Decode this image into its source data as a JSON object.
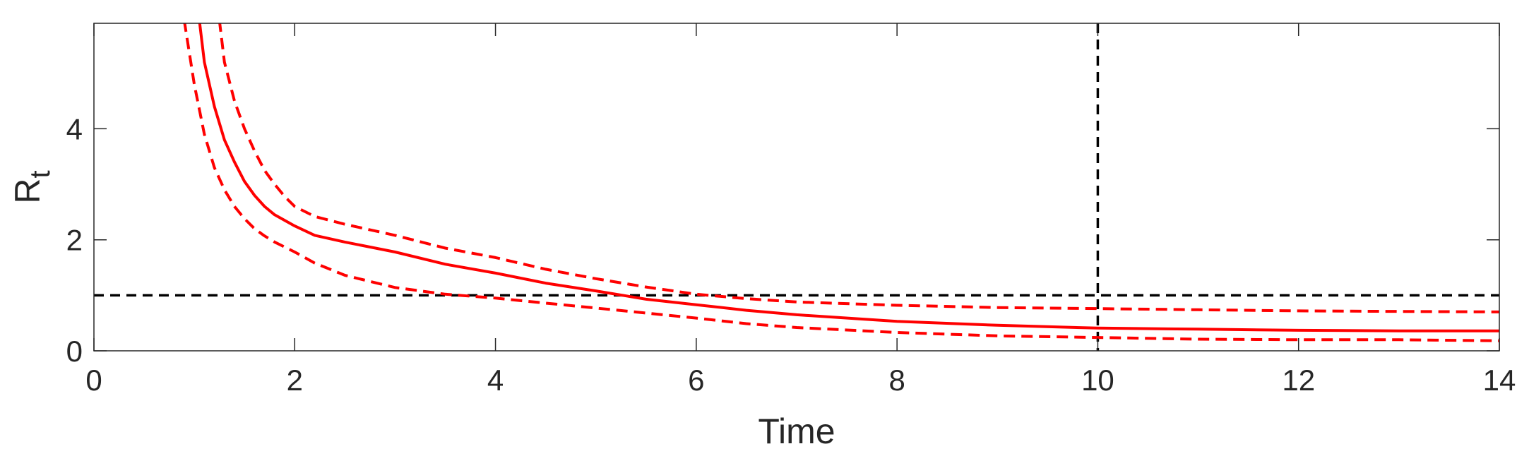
{
  "chart_data": {
    "type": "line",
    "title": "",
    "xlabel": "Time",
    "ylabel": "R",
    "ylabel_subscript": "t",
    "xlim": [
      0,
      14
    ],
    "ylim": [
      0,
      5.9
    ],
    "xticks": [
      "0",
      "2",
      "4",
      "6",
      "8",
      "10",
      "12",
      "14"
    ],
    "yticks": [
      "0",
      "2",
      "4"
    ],
    "grid": false,
    "legend": "none",
    "colors": {
      "series": "#ff0000",
      "reference": "#000000",
      "axis": "#262626"
    },
    "reference_lines": [
      {
        "orientation": "horizontal",
        "y": 1,
        "style": "dashed"
      },
      {
        "orientation": "vertical",
        "x": 10,
        "style": "dashed"
      }
    ],
    "series": [
      {
        "style": "solid",
        "x": [
          1.05,
          1.1,
          1.2,
          1.3,
          1.4,
          1.5,
          1.6,
          1.7,
          1.8,
          2,
          2.2,
          2.5,
          3,
          3.5,
          4,
          4.5,
          5,
          5.5,
          6,
          6.5,
          7,
          8,
          9,
          10,
          11,
          12,
          13,
          14
        ],
        "values": [
          5.95,
          5.2,
          4.4,
          3.8,
          3.4,
          3.05,
          2.8,
          2.6,
          2.45,
          2.25,
          2.08,
          1.96,
          1.78,
          1.56,
          1.4,
          1.22,
          1.08,
          0.93,
          0.83,
          0.73,
          0.65,
          0.53,
          0.46,
          0.41,
          0.39,
          0.37,
          0.36,
          0.36
        ]
      },
      {
        "style": "dashed",
        "x": [
          1.25,
          1.3,
          1.4,
          1.5,
          1.6,
          1.7,
          1.8,
          1.9,
          2,
          2.2,
          2.5,
          3,
          3.5,
          4,
          4.5,
          5,
          5.5,
          6,
          6.5,
          7,
          8,
          9,
          10,
          11,
          12,
          13,
          14
        ],
        "values": [
          5.95,
          5.2,
          4.5,
          4.0,
          3.6,
          3.25,
          3.0,
          2.78,
          2.6,
          2.42,
          2.28,
          2.08,
          1.85,
          1.68,
          1.47,
          1.3,
          1.15,
          1.02,
          0.94,
          0.88,
          0.82,
          0.78,
          0.76,
          0.74,
          0.72,
          0.71,
          0.7
        ]
      },
      {
        "style": "dashed",
        "x": [
          0.9,
          1.0,
          1.1,
          1.2,
          1.3,
          1.4,
          1.5,
          1.6,
          1.7,
          1.8,
          2,
          2.2,
          2.5,
          3,
          3.5,
          4,
          4.5,
          5,
          5.5,
          6,
          6.5,
          7,
          8,
          9,
          10,
          11,
          12,
          13,
          14
        ],
        "values": [
          5.95,
          4.8,
          3.9,
          3.3,
          2.9,
          2.6,
          2.38,
          2.2,
          2.07,
          1.96,
          1.78,
          1.58,
          1.36,
          1.14,
          1.02,
          0.95,
          0.86,
          0.77,
          0.68,
          0.59,
          0.49,
          0.42,
          0.33,
          0.27,
          0.24,
          0.21,
          0.2,
          0.2,
          0.18
        ]
      }
    ]
  }
}
